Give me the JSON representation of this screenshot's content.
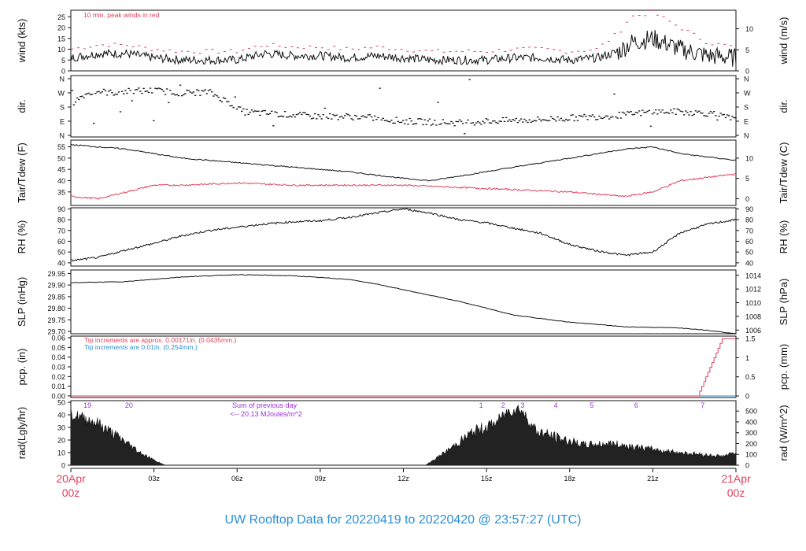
{
  "footer_title": "UW Rooftop Data for 20220419  to  20220420 @ 23:57:27  (UTC)",
  "colors": {
    "red": "#e0405a",
    "blue": "#2b8fd6",
    "purple": "#9b30d9",
    "black": "#111111"
  },
  "time_axis": {
    "start_label": [
      "20Apr",
      "00z"
    ],
    "end_label": [
      "21Apr",
      "00z"
    ],
    "ticks": [
      "03z",
      "06z",
      "09z",
      "12z",
      "15z",
      "18z",
      "21z"
    ],
    "tick_hours": [
      3,
      6,
      9,
      12,
      15,
      18,
      21
    ]
  },
  "chart_data": [
    {
      "type": "line",
      "id": "wind",
      "ylabel_left": "wind (kts)",
      "ylabel_right": "wind (m/s)",
      "ylim": [
        0,
        28
      ],
      "left_ticks": [
        0,
        5,
        10,
        15,
        20,
        25
      ],
      "right_ticks": [
        "0",
        "5",
        "10"
      ],
      "right_tick_values_kts": [
        0,
        9.72,
        19.44
      ],
      "annotation": "10 min. peak winds in red",
      "series": [
        {
          "hours": [
            0,
            1,
            2,
            3,
            4,
            5,
            6,
            7,
            8,
            9,
            10,
            11,
            12,
            13,
            14,
            15,
            16,
            17,
            18,
            19,
            19.8,
            20.2,
            21,
            22,
            23,
            24
          ],
          "values": [
            6,
            8,
            8,
            6,
            5,
            5,
            5,
            8,
            7,
            7,
            6,
            7,
            6,
            5,
            5,
            5,
            6,
            6,
            5,
            6,
            9,
            13,
            15,
            10,
            7,
            6
          ]
        },
        {
          "hours": [
            0,
            1,
            2,
            3,
            4,
            5,
            6,
            7,
            8,
            9,
            10,
            11,
            12,
            13,
            14,
            15,
            16,
            17,
            18,
            19,
            19.8,
            20.2,
            21,
            22,
            23,
            24
          ],
          "values": [
            10,
            12,
            12,
            10,
            9,
            9,
            9,
            12,
            11,
            11,
            10,
            11,
            10,
            9,
            9,
            9,
            10,
            10,
            9,
            10,
            18,
            25,
            27,
            20,
            13,
            11
          ]
        }
      ]
    },
    {
      "type": "scatter",
      "id": "dir",
      "ylabel_left": "dir.",
      "ylabel_right": "dir.",
      "tick_labels": [
        "N",
        "E",
        "S",
        "W",
        "N"
      ],
      "tick_values": [
        0,
        90,
        180,
        270,
        360
      ],
      "hours": [
        0,
        0.5,
        1,
        1.5,
        2,
        3,
        4,
        5,
        5.8,
        6.2,
        7,
        8,
        9,
        10,
        11,
        12,
        13,
        14,
        15,
        16,
        17,
        18,
        19,
        20,
        21,
        22,
        23,
        24
      ],
      "values": [
        200,
        260,
        280,
        270,
        280,
        285,
        270,
        275,
        200,
        150,
        140,
        130,
        120,
        120,
        110,
        90,
        85,
        80,
        90,
        95,
        100,
        110,
        120,
        130,
        150,
        150,
        140,
        100
      ]
    },
    {
      "type": "line",
      "id": "temp",
      "ylabel_left": "Tair/Tdew (F)",
      "ylabel_right": "Tair/Tdew (C)",
      "ylim": [
        29,
        58
      ],
      "left_ticks": [
        35,
        40,
        45,
        50,
        55
      ],
      "right_ticks": [
        "0",
        "5",
        "10"
      ],
      "right_tick_values_f": [
        32,
        41,
        50
      ],
      "series": [
        {
          "name": "Tair",
          "hours": [
            0,
            2,
            4,
            6,
            8,
            10,
            12,
            13,
            14,
            16,
            18,
            20,
            21,
            22,
            24
          ],
          "values": [
            56,
            54,
            50,
            48,
            46,
            44,
            41,
            40,
            42,
            46,
            50,
            54,
            55,
            52,
            49
          ]
        },
        {
          "name": "Tdew",
          "hours": [
            0,
            1,
            2,
            3,
            4,
            6,
            8,
            10,
            12,
            14,
            16,
            18,
            20,
            21,
            22,
            24
          ],
          "values": [
            33,
            32,
            35,
            38,
            38,
            39,
            38,
            38,
            38,
            37,
            36,
            35,
            33,
            35,
            40,
            43
          ]
        }
      ]
    },
    {
      "type": "line",
      "id": "rh",
      "ylabel_left": "RH (%)",
      "ylabel_right": "RH (%)",
      "ylim": [
        37,
        91
      ],
      "ticks": [
        40,
        50,
        60,
        70,
        80,
        90
      ],
      "hours": [
        0,
        1,
        2,
        3,
        4,
        5,
        6,
        7,
        8,
        9,
        10,
        11,
        12,
        13,
        14,
        15,
        16,
        17,
        18,
        19,
        20,
        21,
        22,
        23,
        24
      ],
      "values": [
        42,
        45,
        52,
        58,
        65,
        70,
        73,
        76,
        78,
        79,
        82,
        86,
        90,
        86,
        80,
        77,
        72,
        67,
        57,
        51,
        47,
        50,
        68,
        76,
        80
      ]
    },
    {
      "type": "line",
      "id": "slp",
      "ylabel_left": "SLP (inHg)",
      "ylabel_right": "SLP (hPa)",
      "ylim": [
        29.69,
        29.965
      ],
      "left_ticks": [
        29.7,
        29.75,
        29.8,
        29.85,
        29.9,
        29.95
      ],
      "left_tick_labels": [
        "29.70",
        "29.75",
        "29.80",
        "29.85",
        "29.90",
        "29.95"
      ],
      "right_ticks": [
        "1006",
        "1008",
        "1010",
        "1012",
        "1014"
      ],
      "right_tick_values_inhg": [
        29.706,
        29.765,
        29.824,
        29.883,
        29.942
      ],
      "hours": [
        0,
        2,
        4,
        6,
        8,
        10,
        11,
        12,
        14,
        16,
        18,
        20,
        22,
        23,
        24
      ],
      "values": [
        29.91,
        29.915,
        29.935,
        29.945,
        29.94,
        29.925,
        29.905,
        29.88,
        29.83,
        29.77,
        29.74,
        29.72,
        29.715,
        29.705,
        29.69
      ]
    },
    {
      "type": "line",
      "id": "pcp",
      "ylabel_left": "pcp. (in)",
      "ylabel_right": "pcp. (mm)",
      "ylim": [
        0,
        0.06
      ],
      "left_ticks": [
        0,
        0.01,
        0.02,
        0.03,
        0.04,
        0.05,
        0.06
      ],
      "left_tick_labels": [
        "0.00",
        "0.01",
        "0.02",
        "0.03",
        "0.04",
        "0.05",
        "0.06"
      ],
      "right_ticks": [
        "0",
        "0.5",
        "1",
        "1.5"
      ],
      "right_tick_values_in": [
        0,
        0.0197,
        0.0394,
        0.0591
      ],
      "annotations": [
        "Tip increments are approx. 0.00171in. (0.0435mm.)",
        "Tip increments are 0.01in. (0.254mm.)"
      ],
      "series": [
        {
          "hours": [
            0,
            22.6,
            22.6,
            23.5,
            23.5,
            24
          ],
          "values": [
            0,
            0,
            0.003,
            0.04,
            0.059,
            0.059
          ]
        },
        {
          "hours": [
            0,
            24
          ],
          "values": [
            0,
            0
          ]
        }
      ]
    },
    {
      "type": "area",
      "id": "rad",
      "ylabel_left": "rad(Lgly/hr)",
      "ylabel_right": "rad (W/m^2)",
      "ylim": [
        0,
        50
      ],
      "left_ticks": [
        0,
        10,
        20,
        30,
        40,
        50
      ],
      "right_ticks": [
        "0",
        "100",
        "200",
        "300",
        "400",
        "500"
      ],
      "right_tick_values_lgly": [
        0,
        8.6,
        17.2,
        25.8,
        34.4,
        43
      ],
      "top_labels": [
        "19",
        "20",
        "1",
        "2",
        "3",
        "4",
        "5",
        "6",
        "7"
      ],
      "top_label_hours": [
        0.6,
        2.1,
        14.8,
        15.6,
        16.3,
        17.5,
        18.8,
        20.4,
        22.8
      ],
      "annotation": [
        "Sum of previous day",
        "<-- 20.13 MJoules/m^2"
      ],
      "hours": [
        0,
        0.5,
        1,
        1.5,
        2,
        2.5,
        3,
        3.3,
        3.4,
        12.8,
        13.5,
        14.5,
        15.3,
        15.8,
        16.2,
        16.8,
        17.5,
        18.5,
        19.5,
        20.5,
        21.5,
        22.5,
        23.5,
        24
      ],
      "values": [
        40,
        37,
        33,
        25,
        18,
        10,
        4,
        1,
        0,
        0,
        10,
        26,
        33,
        43,
        45,
        27,
        22,
        16,
        17,
        14,
        11,
        9,
        7,
        10
      ]
    }
  ]
}
